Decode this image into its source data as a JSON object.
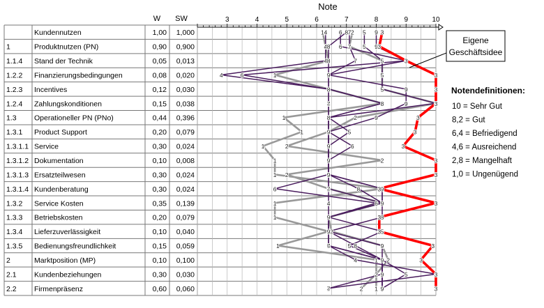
{
  "title": "Note",
  "columns": {
    "w": "W",
    "sw": "SW"
  },
  "chart_data": {
    "type": "line",
    "title": "Note",
    "orientation": "horizontal-profile",
    "xlim": [
      2,
      10
    ],
    "ticks": [
      3,
      4,
      5,
      6,
      7,
      8,
      9,
      10
    ],
    "rows": [
      {
        "id": "",
        "name": "Kundennutzen",
        "w": "1,00",
        "sw": "1,000"
      },
      {
        "id": "1",
        "name": "Produktnutzen (PN)",
        "w": "0,90",
        "sw": "0,900"
      },
      {
        "id": "1.1.4",
        "name": "Stand der Technik",
        "w": "0,05",
        "sw": "0,013"
      },
      {
        "id": "1.2.2",
        "name": "Finanzierungsbedingungen",
        "w": "0,08",
        "sw": "0,020"
      },
      {
        "id": "1.2.3",
        "name": "Incentives",
        "w": "0,12",
        "sw": "0,030"
      },
      {
        "id": "1.2.4",
        "name": "Zahlungskonditionen",
        "w": "0,15",
        "sw": "0,038"
      },
      {
        "id": "1.3",
        "name": "Operationeller PN (PNo)",
        "w": "0,44",
        "sw": "0,396"
      },
      {
        "id": "1.3.1",
        "name": "Product Support",
        "w": "0,20",
        "sw": "0,079"
      },
      {
        "id": "1.3.1.1",
        "name": "Service",
        "w": "0,30",
        "sw": "0,024"
      },
      {
        "id": "1.3.1.2",
        "name": "Dokumentation",
        "w": "0,10",
        "sw": "0,008"
      },
      {
        "id": "1.3.1.3",
        "name": "Ersatzteilwesen",
        "w": "0,30",
        "sw": "0,024"
      },
      {
        "id": "1.3.1.4",
        "name": "Kundenberatung",
        "w": "0,30",
        "sw": "0,024"
      },
      {
        "id": "1.3.2",
        "name": "Service Kosten",
        "w": "0,35",
        "sw": "0,139"
      },
      {
        "id": "1.3.3",
        "name": "Betriebskosten",
        "w": "0,20",
        "sw": "0,079"
      },
      {
        "id": "1.3.4",
        "name": "Lieferzuverlässigkeit",
        "w": "0,10",
        "sw": "0,040"
      },
      {
        "id": "1.3.5",
        "name": "Bedienungsfreundlichkeit",
        "w": "0,15",
        "sw": "0,059"
      },
      {
        "id": "2",
        "name": "Marktposition (MP)",
        "w": "0,10",
        "sw": "0,100"
      },
      {
        "id": "2.1",
        "name": "Kundenbeziehungen",
        "w": "0,30",
        "sw": "0,030"
      },
      {
        "id": "2.2",
        "name": "Firmenpräsenz",
        "w": "0,60",
        "sw": "0,060"
      }
    ],
    "series": [
      {
        "marker": "3",
        "color": "#ff0000",
        "values": [
          8.2,
          8.1,
          9.0,
          10.0,
          10.0,
          10.0,
          9.4,
          9.3,
          8.9,
          10.0,
          10.0,
          8.1,
          10.0,
          8.1,
          8.1,
          9.9,
          9.5,
          10.0,
          10.0
        ]
      },
      {
        "marker": "1",
        "color": "#999999",
        "values": [
          6.2,
          6.3,
          6.4,
          4.6,
          6.4,
          8.2,
          4.9,
          5.5,
          4.2,
          4.6,
          4.6,
          8.2,
          4.6,
          4.6,
          6.4,
          4.7,
          8.0,
          8.0,
          8.0
        ]
      },
      {
        "marker": "2",
        "color": "#999999",
        "values": [
          7.2,
          7.1,
          8.2,
          8.2,
          8.2,
          10.0,
          7.3,
          6.4,
          5.0,
          8.2,
          5.0,
          6.4,
          8.2,
          6.4,
          6.5,
          8.2,
          8.4,
          8.0,
          7.5
        ]
      },
      {
        "marker": "4",
        "color": "#4a1c5e",
        "values": [
          6.3,
          6.3,
          6.3,
          2.8,
          6.4,
          6.4,
          6.4,
          6.4,
          6.4,
          6.4,
          6.4,
          6.4,
          6.4,
          6.4,
          6.4,
          6.4,
          7.3,
          10.0,
          6.4
        ]
      },
      {
        "marker": "5",
        "color": "#4a1c5e",
        "values": [
          7.6,
          7.6,
          8.2,
          8.2,
          8.2,
          10.0,
          6.4,
          7.1,
          6.4,
          6.4,
          6.4,
          8.2,
          8.2,
          6.4,
          8.2,
          7.1,
          8.2,
          9.0,
          8.2
        ]
      },
      {
        "marker": "6",
        "color": "#4a1c5e",
        "values": [
          6.8,
          6.8,
          9.0,
          3.5,
          6.4,
          8.2,
          6.4,
          6.4,
          7.2,
          6.4,
          6.4,
          4.6,
          8.0,
          6.4,
          6.4,
          6.4,
          8.2,
          8.2,
          8.2
        ]
      },
      {
        "marker": "7",
        "color": "#4a1c5e",
        "values": [
          7.1,
          7.1,
          7.3,
          6.4,
          6.4,
          6.4,
          6.4,
          6.4,
          6.4,
          6.4,
          6.4,
          6.4,
          8.2,
          6.4,
          6.4,
          6.4,
          8.2,
          8.2,
          6.4
        ]
      },
      {
        "marker": "8",
        "color": "#4a1c5e",
        "values": [
          7.0,
          6.4,
          6.4,
          6.4,
          6.4,
          8.2,
          6.4,
          6.4,
          6.4,
          6.4,
          6.4,
          7.4,
          8.2,
          8.2,
          6.4,
          7.3,
          8.2,
          8.2,
          8.2
        ]
      },
      {
        "marker": "9",
        "color": "#4a1c5e",
        "values": [
          8.0,
          8.0,
          9.0,
          6.4,
          9.0,
          9.0,
          8.0,
          6.4,
          6.4,
          6.4,
          6.4,
          8.2,
          8.2,
          6.4,
          6.4,
          8.2,
          8.2,
          8.2,
          8.2
        ]
      }
    ]
  },
  "callout": {
    "line1": "Eigene",
    "line2": "Geschäftsidee"
  },
  "legend": {
    "title": "Notendefinitionen:",
    "items": [
      "10 = Sehr Gut",
      "8,2 = Gut",
      "6,4 = Befriedigend",
      "4,6 = Ausreichend",
      "2,8 = Mangelhaft",
      "1,0 = Ungenügend"
    ]
  }
}
